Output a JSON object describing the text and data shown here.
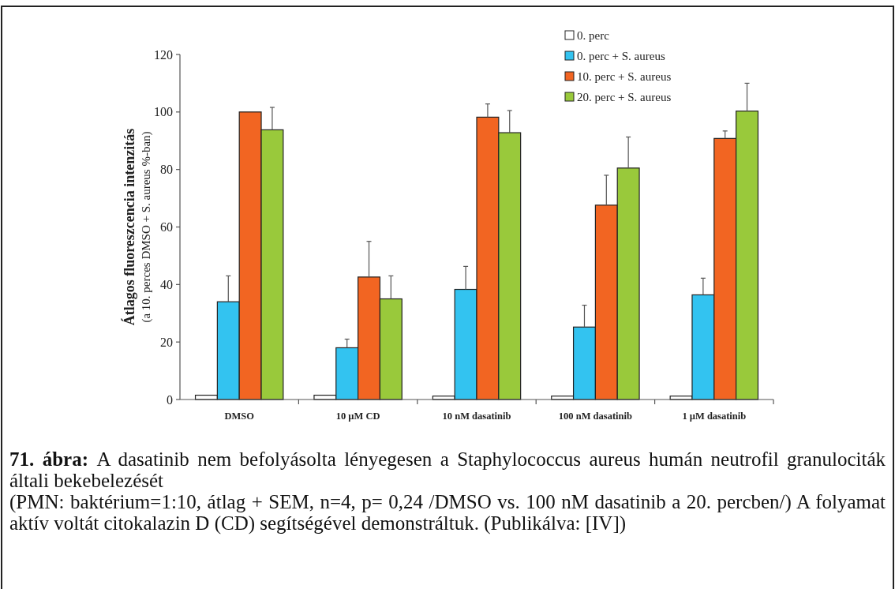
{
  "chart_data": {
    "type": "bar",
    "ylabel": "Átlagos fluoreszcencia intenzitás\n(a 10. perces DMSO + S. aureus %-ban)",
    "categories": [
      "DMSO",
      "10 µM CD",
      "10 nM dasatinib",
      "100 nM dasatinib",
      "1 µM dasatinib"
    ],
    "series": [
      {
        "name": "0. perc",
        "color": "#ffffff",
        "values": [
          1.5,
          1.5,
          1.2,
          1.2,
          1.2
        ]
      },
      {
        "name": "0. perc + S. aureus",
        "color": "#33c3f0",
        "values": [
          34,
          18,
          38.3,
          25.2,
          36.4
        ],
        "errors": [
          9,
          3,
          8,
          7.6,
          5.8
        ]
      },
      {
        "name": "10. perc + S. aureus",
        "color": "#f26522",
        "values": [
          100,
          42.6,
          98.2,
          67.6,
          90.8
        ],
        "errors": [
          0,
          12.4,
          4.6,
          10.4,
          2.6
        ]
      },
      {
        "name": "20. perc + S. aureus",
        "color": "#99c93b",
        "values": [
          93.8,
          35,
          92.8,
          80.5,
          100.3
        ],
        "errors": [
          7.8,
          8,
          7.7,
          10.8,
          9.7
        ]
      }
    ],
    "ylim": [
      0,
      120
    ],
    "yticks": [
      0,
      20,
      40,
      60,
      80,
      100,
      120
    ],
    "grid": false,
    "legend": "top right",
    "annotations": [
      "71. ábra:",
      "A dasatinib nem befolyásolta lényegesen a Staphylococcus aureus humán neutrofil granulociták általi bekebelezését",
      "(PMN: baktérium=1:10, átlag + SEM, n=4, p= 0,24 /DMSO vs. 100 nM dasatinib a 20. percben/) A folyamat aktív voltát citokalazin D (CD) segítségével demonstráltuk. (Publikálva: [IV])"
    ]
  }
}
